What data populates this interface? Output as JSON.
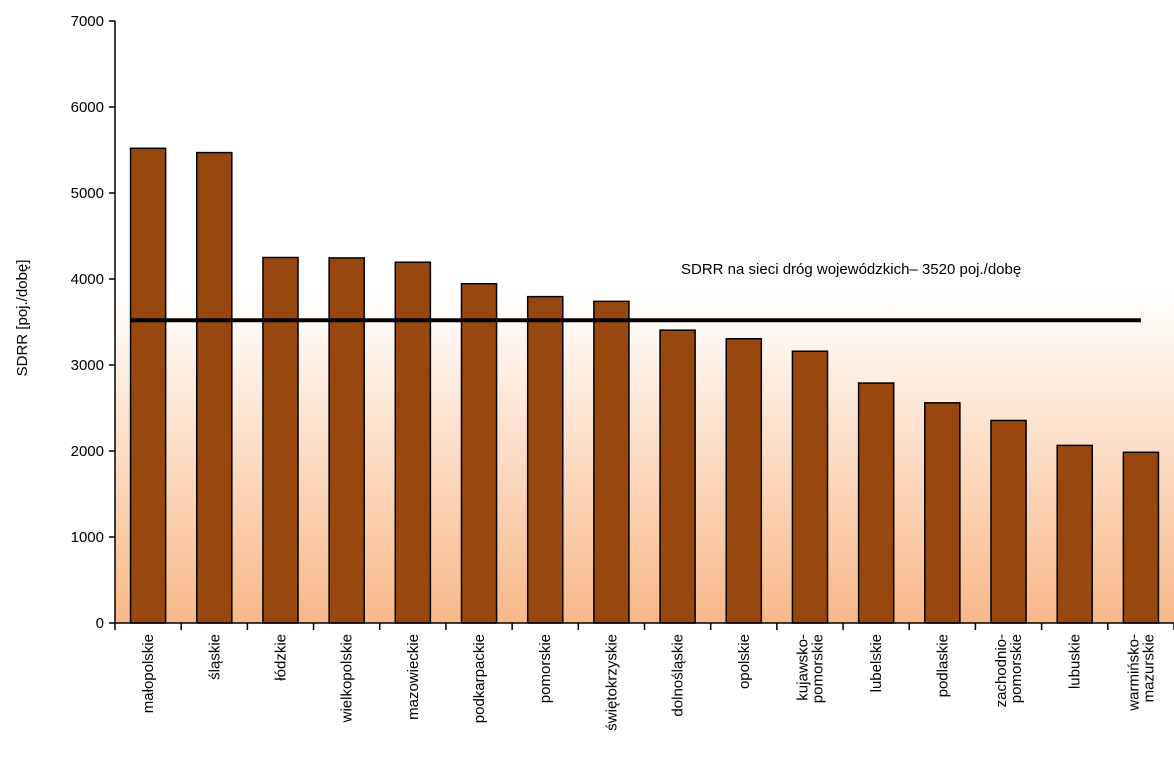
{
  "chart_data": {
    "type": "bar",
    "ylabel": "SDRR  [poj./dobę]",
    "xlabel": "",
    "ylim": [
      0,
      7000
    ],
    "yticks": [
      "0",
      "1000",
      "2000",
      "3000",
      "4000",
      "5000",
      "6000",
      "7000"
    ],
    "categories": [
      [
        "małopolskie"
      ],
      [
        "śląskie"
      ],
      [
        "łódzkie"
      ],
      [
        "wielkopolskie"
      ],
      [
        "mazowieckie"
      ],
      [
        "podkarpackie"
      ],
      [
        "pomorskie"
      ],
      [
        "świętokrzyskie"
      ],
      [
        "dolnośląskie"
      ],
      [
        "opolskie"
      ],
      [
        "kujawsko-",
        "pomorskie"
      ],
      [
        "lubelskie"
      ],
      [
        "podlaskie"
      ],
      [
        "zachodnio-",
        "pomorskie"
      ],
      [
        "lubuskie"
      ],
      [
        "warmińsko-",
        "mazurskie"
      ]
    ],
    "values": [
      5520,
      5470,
      4250,
      4245,
      4195,
      3945,
      3795,
      3740,
      3405,
      3305,
      3160,
      2790,
      2560,
      2355,
      2065,
      1985
    ],
    "reference_line": {
      "value": 3520,
      "label": "SDRR na sieci dróg wojewódzkich– 3520 poj./dobę"
    },
    "grid": false,
    "colors": {
      "bar_fill": "#98480E",
      "bar_stroke": "#000000",
      "background_top": "#FFFFFF",
      "background_bottom": "#F8B888",
      "reference_line": "#000000"
    }
  }
}
